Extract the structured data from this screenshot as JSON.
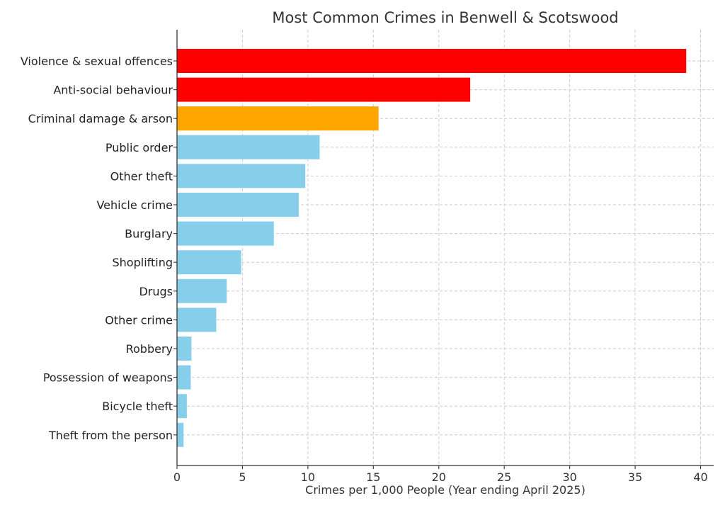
{
  "chart_data": {
    "type": "bar",
    "orientation": "horizontal",
    "title": "Most Common Crimes in Benwell & Scotswood",
    "xlabel": "Crimes per 1,000 People (Year ending April 2025)",
    "ylabel": "",
    "xlim": [
      0,
      41
    ],
    "xticks": [
      0,
      5,
      10,
      15,
      20,
      25,
      30,
      35,
      40
    ],
    "grid": true,
    "categories": [
      "Violence & sexual offences",
      "Anti-social behaviour",
      "Criminal damage & arson",
      "Public order",
      "Other theft",
      "Vehicle crime",
      "Burglary",
      "Shoplifting",
      "Drugs",
      "Other crime",
      "Robbery",
      "Possession of weapons",
      "Bicycle theft",
      "Theft from the person"
    ],
    "values": [
      38.9,
      22.4,
      15.4,
      10.9,
      9.8,
      9.3,
      7.4,
      4.9,
      3.8,
      3.0,
      1.1,
      1.05,
      0.75,
      0.5
    ],
    "bar_colors": [
      "#ff0000",
      "#ff0000",
      "#ffa500",
      "#87ceeb",
      "#87ceeb",
      "#87ceeb",
      "#87ceeb",
      "#87ceeb",
      "#87ceeb",
      "#87ceeb",
      "#87ceeb",
      "#87ceeb",
      "#87ceeb",
      "#87ceeb"
    ]
  }
}
